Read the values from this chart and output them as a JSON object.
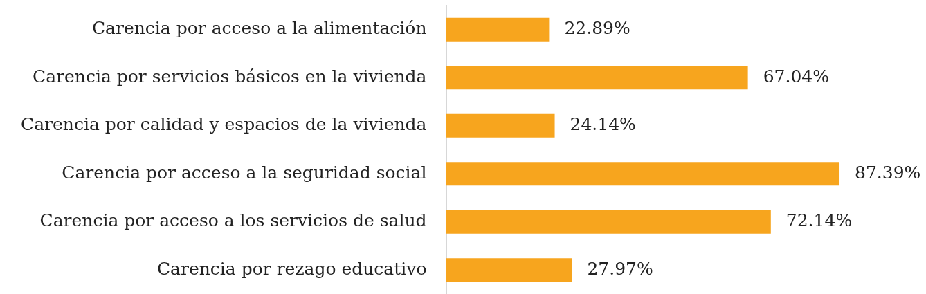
{
  "chart_data": {
    "type": "bar",
    "orientation": "horizontal",
    "categories": [
      "Carencia por acceso a la alimentación",
      "Carencia por servicios básicos en la vivienda",
      "Carencia por calidad y espacios de la vivienda",
      "Carencia por acceso a la seguridad social",
      "Carencia por acceso a los servicios de salud",
      "Carencia por rezago educativo"
    ],
    "values": [
      22.89,
      67.04,
      24.14,
      87.39,
      72.14,
      27.97
    ],
    "color": "#f7a51e",
    "value_labels": [
      "22.89%",
      "67.04%",
      "24.14%",
      "87.39%",
      "72.14%",
      "27.97%"
    ],
    "grid": false,
    "legend": false,
    "tick_labels": "y"
  }
}
